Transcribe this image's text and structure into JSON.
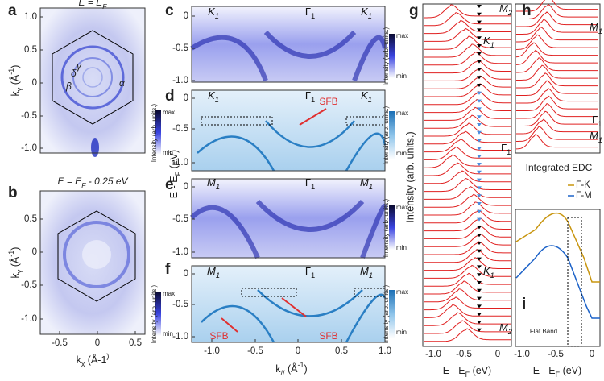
{
  "panel_labels": [
    "a",
    "b",
    "c",
    "d",
    "e",
    "f",
    "g",
    "h",
    "i"
  ],
  "map": {
    "a_title": [
      "E = E",
      "F"
    ],
    "b_title": [
      "E = E",
      "F",
      " - 0.25 eV"
    ],
    "a_yticks": [
      "1.0",
      "0.5",
      "0",
      "-0.5",
      "-1.0"
    ],
    "b_yticks": [
      "0.5",
      "0",
      "-0.5",
      "-1.0"
    ],
    "xticks": [
      "-0.5",
      "0",
      "0.5"
    ],
    "y_label": [
      "k",
      "y",
      " (Å",
      "-1",
      ")"
    ],
    "x_label": [
      "k",
      "x",
      " (Å",
      "-1",
      ")"
    ],
    "annotations": [
      "γ",
      "β",
      "α",
      "δ"
    ]
  },
  "colorbar": {
    "max": "max",
    "min": "min",
    "label": "Intensity (arb. units.)"
  },
  "cut": {
    "c_marks": [
      [
        "K",
        "1"
      ],
      [
        "Γ",
        "1"
      ],
      [
        "K",
        "1"
      ]
    ],
    "e_marks": [
      [
        "M",
        "1"
      ],
      [
        "Γ",
        "1"
      ],
      [
        "M",
        "1"
      ]
    ],
    "yticks": [
      "0",
      "-0.5",
      "-1.0"
    ],
    "xticks": [
      "-1.0",
      "-0.5",
      "0",
      "0.5",
      "1.0"
    ],
    "y_label": [
      "E - E",
      "F",
      " (eV)"
    ],
    "x_label": [
      "k",
      "//",
      " (Å",
      "-1",
      ")"
    ],
    "sfb": "SFB"
  },
  "edc": {
    "y_label": "Intensity (arb. units.)",
    "g_marks": [
      [
        "M",
        "2"
      ],
      [
        "K",
        "1"
      ],
      [
        "Γ",
        "1"
      ],
      [
        "K",
        "1"
      ],
      [
        "M",
        "2"
      ]
    ],
    "h_marks": [
      [
        "M",
        "1"
      ],
      [
        "Γ",
        "1"
      ],
      [
        "M",
        "1"
      ]
    ],
    "xticks": [
      "-1.0",
      "-0.5",
      "0"
    ],
    "x_label": [
      "E - E",
      "F",
      " (eV)"
    ],
    "i_title": "Integrated EDC",
    "legend": [
      "Γ-K",
      "Γ-M"
    ],
    "flat_band": "Flat Band"
  }
}
